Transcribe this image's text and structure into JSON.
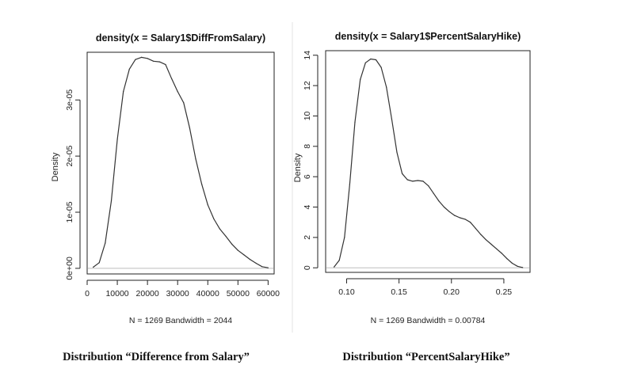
{
  "chart_data": [
    {
      "type": "line",
      "title": "density(x = Salary1$DiffFromSalary)",
      "xlabel": "N = 1269   Bandwidth = 2044",
      "ylabel": "Density",
      "caption": "Distribution “Difference from Salary”",
      "xlim": [
        0,
        62000
      ],
      "ylim": [
        -1e-06,
        3.85e-05
      ],
      "x_ticks": [
        0,
        10000,
        20000,
        30000,
        40000,
        50000,
        60000
      ],
      "x_tick_labels": [
        "0",
        "10000",
        "20000",
        "30000",
        "40000",
        "50000",
        "60000"
      ],
      "y_ticks": [
        0,
        1e-05,
        2e-05,
        3e-05
      ],
      "y_tick_labels": [
        "0e+00",
        "1e-05",
        "2e-05",
        "3e-05"
      ],
      "baseline": 0,
      "series": [
        {
          "x": [
            2000,
            4000,
            6000,
            8000,
            10000,
            12000,
            14000,
            16000,
            18000,
            20000,
            22000,
            24000,
            26000,
            28000,
            30000,
            32000,
            34000,
            36000,
            38000,
            40000,
            42000,
            44000,
            46000,
            48000,
            50000,
            52000,
            54000,
            56000,
            58000,
            60000
          ],
          "y": [
            2e-07,
            1e-06,
            4.5e-06,
            1.2e-05,
            2.3e-05,
            3.15e-05,
            3.55e-05,
            3.72e-05,
            3.76e-05,
            3.74e-05,
            3.69e-05,
            3.68e-05,
            3.63e-05,
            3.38e-05,
            3.15e-05,
            2.95e-05,
            2.5e-05,
            1.95e-05,
            1.5e-05,
            1.13e-05,
            8.8e-06,
            7e-06,
            5.7e-06,
            4.3e-06,
            3.2e-06,
            2.4e-06,
            1.6e-06,
            9e-07,
            3e-07,
            1e-07
          ]
        }
      ]
    },
    {
      "type": "line",
      "title": "density(x = Salary1$PercentSalaryHike)",
      "xlabel": "N = 1269   Bandwidth = 0.00784",
      "ylabel": "Density",
      "caption": "Distribution “PercentSalaryHike”",
      "xlim": [
        0.08,
        0.275
      ],
      "ylim": [
        -0.3,
        14.3
      ],
      "x_ticks": [
        0.1,
        0.15,
        0.2,
        0.25
      ],
      "x_tick_labels": [
        "0.10",
        "0.15",
        "0.20",
        "0.25"
      ],
      "y_ticks": [
        0,
        2,
        4,
        6,
        8,
        10,
        12,
        14
      ],
      "y_tick_labels": [
        "0",
        "2",
        "4",
        "6",
        "8",
        "10",
        "12",
        "14"
      ],
      "baseline": 0,
      "series": [
        {
          "x": [
            0.088,
            0.093,
            0.098,
            0.103,
            0.108,
            0.113,
            0.118,
            0.123,
            0.128,
            0.133,
            0.138,
            0.143,
            0.148,
            0.153,
            0.158,
            0.163,
            0.168,
            0.173,
            0.178,
            0.183,
            0.188,
            0.193,
            0.198,
            0.203,
            0.208,
            0.213,
            0.218,
            0.223,
            0.228,
            0.233,
            0.238,
            0.243,
            0.248,
            0.253,
            0.258,
            0.263,
            0.268
          ],
          "y": [
            0.05,
            0.5,
            2.0,
            5.5,
            9.6,
            12.4,
            13.5,
            13.75,
            13.7,
            13.2,
            11.9,
            9.8,
            7.6,
            6.2,
            5.8,
            5.7,
            5.75,
            5.7,
            5.4,
            4.9,
            4.4,
            4.0,
            3.7,
            3.45,
            3.3,
            3.2,
            3.0,
            2.6,
            2.2,
            1.85,
            1.55,
            1.25,
            0.95,
            0.6,
            0.3,
            0.1,
            0.02
          ]
        }
      ]
    }
  ]
}
